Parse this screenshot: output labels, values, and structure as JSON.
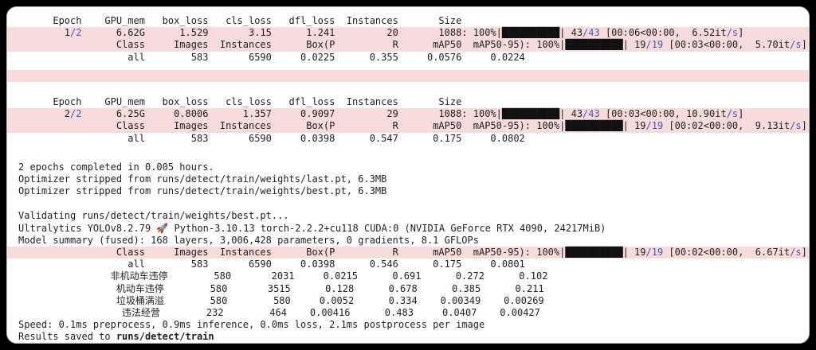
{
  "colors": {
    "page_bg": "#000000",
    "panel_bg": "#ffffff",
    "text": "#1f1f1f",
    "stderr_bg": "#f8dbdb",
    "accent_blue": "#4257c2",
    "progress_bar": "#111111"
  },
  "console": {
    "lines": [
      {
        "n": "metrics-header-epoch1",
        "bg": "white",
        "parts": [
          {
            "t": "      Epoch    GPU_mem   box_loss   cls_loss   dfl_loss  Instances       Size"
          }
        ]
      },
      {
        "n": "epoch1-progress-row",
        "bg": "pink",
        "parts": [
          {
            "t": "        1"
          },
          {
            "t": "/2",
            "s": "b"
          },
          {
            "t": "      6.62G      1.529       3.15      1.241         20       1088: 100%|"
          },
          {
            "t": "██████████",
            "s": "bar",
            "np": "progress-bar"
          },
          {
            "t": "| 43"
          },
          {
            "t": "/43",
            "s": "b"
          },
          {
            "t": " [00:06<00:00,  6.52it"
          },
          {
            "t": "/s",
            "s": "b"
          },
          {
            "t": "]"
          }
        ]
      },
      {
        "n": "epoch1-val-progress-row",
        "bg": "pink",
        "parts": [
          {
            "t": "                 Class     Images  Instances      Box(P          R      mAP50  mAP50-95): 100%|"
          },
          {
            "t": "██████████",
            "s": "bar",
            "np": "progress-bar"
          },
          {
            "t": "| 19"
          },
          {
            "t": "/19",
            "s": "b"
          },
          {
            "t": " [00:03<00:00,  5.70it"
          },
          {
            "t": "/s",
            "s": "b"
          },
          {
            "t": "]"
          }
        ]
      },
      {
        "n": "epoch1-all-metrics-row",
        "bg": "white",
        "parts": [
          {
            "t": "                   all        583       6590     0.0225      0.355     0.0576     0.0224"
          }
        ]
      },
      {
        "n": "stderr-blank-row",
        "bg": "pink",
        "gap": 8,
        "parts": [
          {
            "t": " "
          }
        ]
      },
      {
        "n": "metrics-header-epoch2",
        "bg": "white",
        "gap": 18,
        "parts": [
          {
            "t": "      Epoch    GPU_mem   box_loss   cls_loss   dfl_loss  Instances       Size"
          }
        ]
      },
      {
        "n": "epoch2-progress-row",
        "bg": "pink",
        "parts": [
          {
            "t": "        2"
          },
          {
            "t": "/2",
            "s": "b"
          },
          {
            "t": "      6.25G     0.8006      1.357     0.9097         29       1088: 100%|"
          },
          {
            "t": "██████████",
            "s": "bar",
            "np": "progress-bar"
          },
          {
            "t": "| 43"
          },
          {
            "t": "/43",
            "s": "b"
          },
          {
            "t": " [00:03<00:00, 10.90it"
          },
          {
            "t": "/s",
            "s": "b"
          },
          {
            "t": "]"
          }
        ]
      },
      {
        "n": "epoch2-val-progress-row",
        "bg": "pink",
        "parts": [
          {
            "t": "                 Class     Images  Instances      Box(P          R      mAP50  mAP50-95): 100%|"
          },
          {
            "t": "██████████",
            "s": "bar",
            "np": "progress-bar"
          },
          {
            "t": "| 19"
          },
          {
            "t": "/19",
            "s": "b"
          },
          {
            "t": " [00:02<00:00,  9.13it"
          },
          {
            "t": "/s",
            "s": "b"
          },
          {
            "t": "]"
          }
        ]
      },
      {
        "n": "epoch2-all-metrics-row",
        "bg": "white",
        "parts": [
          {
            "t": "                   all        583       6590     0.0398      0.547      0.175     0.0802"
          }
        ]
      },
      {
        "n": "epochs-completed-line",
        "bg": "white",
        "gap": 21,
        "parts": [
          {
            "t": "2 epochs completed in 0.005 hours."
          }
        ]
      },
      {
        "n": "optimizer-stripped-last-line",
        "bg": "white",
        "parts": [
          {
            "t": "Optimizer stripped from runs/detect/train/weights/last.pt, 6.3MB"
          }
        ]
      },
      {
        "n": "optimizer-stripped-best-line",
        "bg": "white",
        "parts": [
          {
            "t": "Optimizer stripped from runs/detect/train/weights/best.pt, 6.3MB"
          }
        ]
      },
      {
        "n": "validating-line",
        "bg": "white",
        "gap": 16,
        "parts": [
          {
            "t": "Validating runs/detect/train/weights/best.pt..."
          }
        ]
      },
      {
        "n": "ultralytics-version-line",
        "bg": "white",
        "parts": [
          {
            "t": "Ultralytics YOLOv8.2.79 🚀 Python-3.10.13 torch-2.2.2+cu118 CUDA:0 (NVIDIA GeForce RTX 4090, 24217MiB)"
          }
        ]
      },
      {
        "n": "model-summary-line",
        "bg": "white",
        "parts": [
          {
            "t": "Model summary (fused): 168 layers, 3,006,428 parameters, 0 gradients, 8.1 GFLOPs"
          }
        ]
      },
      {
        "n": "final-val-progress-row",
        "bg": "pink",
        "parts": [
          {
            "t": "                 Class     Images  Instances      Box(P          R      mAP50  mAP50-95): 100%|"
          },
          {
            "t": "██████████",
            "s": "bar",
            "np": "progress-bar"
          },
          {
            "t": "| 19"
          },
          {
            "t": "/19",
            "s": "b"
          },
          {
            "t": " [00:02<00:00,  6.67it"
          },
          {
            "t": "/s",
            "s": "b"
          },
          {
            "t": "]"
          }
        ]
      },
      {
        "n": "final-val-all-row",
        "bg": "white",
        "parts": [
          {
            "t": "                   all        583       6590     0.0398      0.546      0.175     0.0801"
          }
        ]
      },
      {
        "n": "final-val-class-row",
        "bg": "white",
        "parts": [
          {
            "t": "                非机动车违停        580       2031     0.0215      0.691      0.272      0.102"
          }
        ]
      },
      {
        "n": "final-val-class-row",
        "bg": "white",
        "parts": [
          {
            "t": "                 机动车违停        580       3515      0.128      0.678      0.385      0.211"
          }
        ]
      },
      {
        "n": "final-val-class-row",
        "bg": "white",
        "parts": [
          {
            "t": "                 垃圾桶满溢        580        580     0.0052      0.334    0.00349    0.00269"
          }
        ]
      },
      {
        "n": "final-val-class-row",
        "bg": "white",
        "parts": [
          {
            "t": "                  违法经营        232        464    0.00416      0.483     0.0407    0.00427"
          }
        ]
      },
      {
        "n": "speed-line",
        "bg": "white",
        "parts": [
          {
            "t": "Speed: 0.1ms preprocess, 0.9ms inference, 0.0ms loss, 2.1ms postprocess per image"
          }
        ]
      },
      {
        "n": "results-saved-line",
        "bg": "white",
        "parts": [
          {
            "t": "Results saved to "
          },
          {
            "t": "runs/detect/train",
            "s": "bold",
            "np": "results-path"
          }
        ]
      }
    ]
  }
}
